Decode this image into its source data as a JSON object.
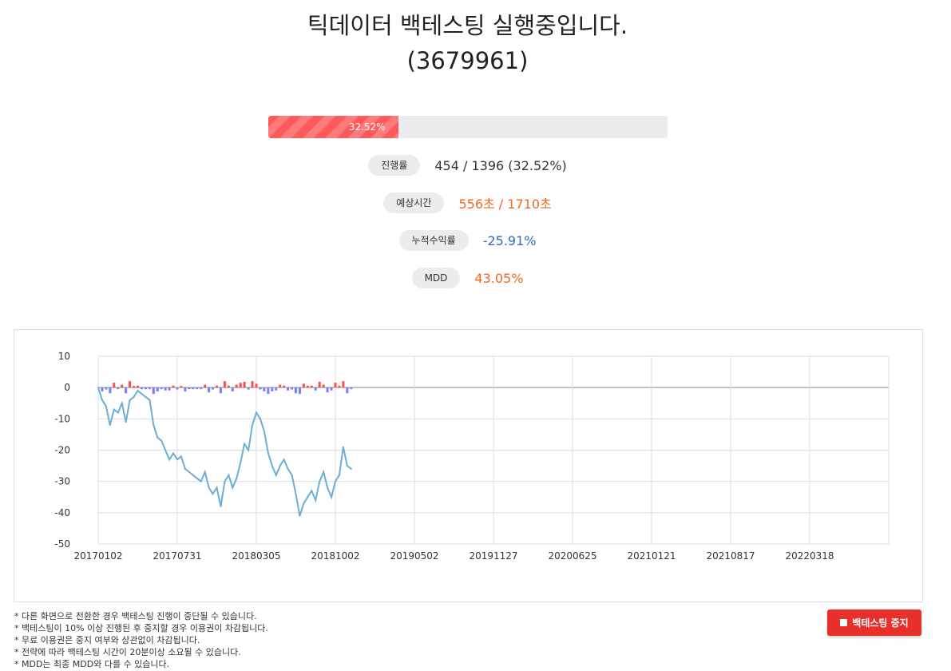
{
  "title": {
    "line1": "틱데이터 백테스팅 실행중입니다.",
    "line2": "(3679961)"
  },
  "progress": {
    "fraction": 0.3252,
    "label": "32.52%"
  },
  "stats": [
    {
      "label": "진행률",
      "value": "454 / 1396 (32.52%)",
      "color": "#333333"
    },
    {
      "label": "예상시간",
      "value": "556초 / 1710초",
      "color": "#f26522"
    },
    {
      "label": "누적수익률",
      "value": "-25.91%",
      "color": "#2b6cc4"
    },
    {
      "label": "MDD",
      "value": "43.05%",
      "color": "#f26522"
    }
  ],
  "chart_data": {
    "type": "line",
    "ylim": [
      -50,
      10
    ],
    "yticks": [
      "10",
      "0",
      "-10",
      "-20",
      "-30",
      "-40",
      "-50"
    ],
    "xticks": [
      "20170102",
      "20170731",
      "20180305",
      "20181002",
      "20190502",
      "20191127",
      "20200625",
      "20210121",
      "20210817",
      "20220318"
    ],
    "grid": true,
    "colors": {
      "cumulative": "#6aaed6",
      "daily_up": "#ff4d4d",
      "daily_down": "#7b7bff",
      "zero_line": "#888888"
    },
    "series": [
      {
        "x_index": [
          0.0,
          0.05,
          0.1,
          0.15,
          0.2,
          0.25,
          0.3,
          0.35,
          0.4,
          0.45,
          0.5,
          0.55,
          0.6,
          0.65,
          0.7,
          0.75,
          0.8,
          0.85,
          0.9,
          0.95,
          1.0,
          1.05,
          1.1,
          1.15,
          1.2,
          1.25,
          1.3,
          1.35,
          1.4,
          1.45,
          1.5,
          1.55,
          1.6,
          1.65,
          1.7,
          1.75,
          1.8,
          1.85,
          1.9,
          1.95,
          2.0,
          2.05,
          2.1,
          2.15,
          2.2,
          2.25,
          2.3,
          2.35,
          2.4,
          2.45,
          2.5,
          2.55,
          2.6,
          2.65,
          2.7,
          2.75,
          2.8,
          2.85,
          2.9,
          2.95,
          3.0,
          3.05,
          3.1,
          3.15,
          3.2
        ],
        "values": [
          0,
          -4,
          -6,
          -12,
          -7,
          -8,
          -5,
          -11,
          -4,
          -3,
          -1,
          -2,
          -3,
          -4,
          -12,
          -16,
          -17,
          -20,
          -23,
          -21,
          -23,
          -22,
          -26,
          -27,
          -28,
          -29,
          -30,
          -27,
          -32,
          -34,
          -32,
          -38,
          -30,
          -28,
          -32,
          -29,
          -24,
          -18,
          -20,
          -12,
          -8,
          -10,
          -14,
          -21,
          -25,
          -28,
          -25,
          -23,
          -26,
          -28,
          -34,
          -41,
          -37,
          -35,
          -33,
          -36,
          -30,
          -27,
          -32,
          -35,
          -30,
          -28,
          -19,
          -25,
          -26
        ]
      }
    ]
  },
  "notes": [
    "* 다른 화면으로 전환한 경우 백테스팅 진행이 중단될 수 있습니다.",
    "* 백테스팅이 10% 이상 진행된 후 중지할 경우 이용권이 차감됩니다.",
    "* 무료 이용권은 중지 여부와 상관없이 차감됩니다.",
    "* 전략에 따라 백테스팅 시간이 20분이상 소요될 수 있습니다.",
    "* MDD는 최종 MDD와 다를 수 있습니다."
  ],
  "stop_button": {
    "label": "백테스팅 중지"
  }
}
